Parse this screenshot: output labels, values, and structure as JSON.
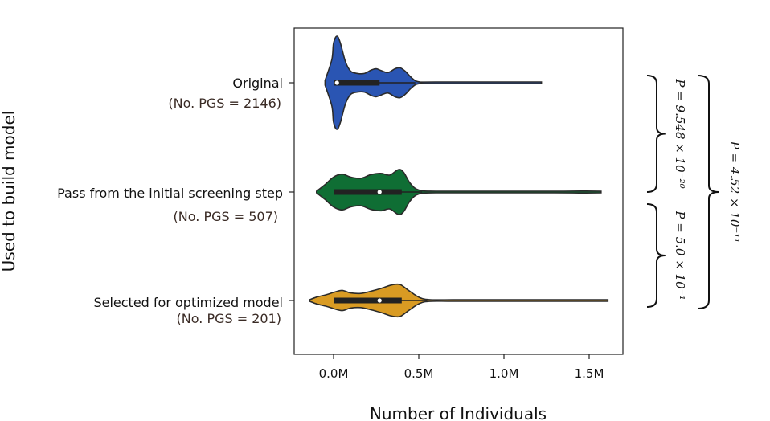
{
  "chart_data": {
    "type": "violin",
    "orientation": "horizontal",
    "xlabel": "Number of Individuals",
    "ylabel": "Used to build model",
    "xlim": [
      -0.22,
      1.7
    ],
    "x_unit": "M",
    "xticks": [
      {
        "value": 0.0,
        "label": "0.0M"
      },
      {
        "value": 0.5,
        "label": "0.5M"
      },
      {
        "value": 1.0,
        "label": "1.0M"
      },
      {
        "value": 1.5,
        "label": "1.5M"
      }
    ],
    "grid": false,
    "groups": [
      {
        "label": "Original",
        "sublabel": "(No. PGS = 2146)",
        "color": "#2a55b3",
        "median": 0.02,
        "q1": 0.0,
        "q3": 0.27,
        "whisker_high": 0.48,
        "min": -0.05,
        "max": 1.22,
        "density": [
          [
            -0.05,
            0.05
          ],
          [
            -0.01,
            0.5
          ],
          [
            0.0,
            0.85
          ],
          [
            0.02,
            1.0
          ],
          [
            0.04,
            0.85
          ],
          [
            0.07,
            0.45
          ],
          [
            0.1,
            0.25
          ],
          [
            0.14,
            0.2
          ],
          [
            0.18,
            0.2
          ],
          [
            0.22,
            0.27
          ],
          [
            0.25,
            0.3
          ],
          [
            0.28,
            0.26
          ],
          [
            0.32,
            0.22
          ],
          [
            0.36,
            0.3
          ],
          [
            0.39,
            0.32
          ],
          [
            0.42,
            0.25
          ],
          [
            0.46,
            0.1
          ],
          [
            0.5,
            0.02
          ],
          [
            0.6,
            0.01
          ],
          [
            1.22,
            0.005
          ]
        ]
      },
      {
        "label": "Pass from the initial screening step",
        "sublabel": "(No. PGS = 507)",
        "color": "#0f6e34",
        "median": 0.27,
        "q1": 0.0,
        "q3": 0.4,
        "whisker_high": 0.52,
        "min": -0.1,
        "max": 1.57,
        "density": [
          [
            -0.1,
            0.02
          ],
          [
            -0.05,
            0.3
          ],
          [
            0.0,
            0.6
          ],
          [
            0.05,
            0.72
          ],
          [
            0.1,
            0.6
          ],
          [
            0.16,
            0.55
          ],
          [
            0.22,
            0.7
          ],
          [
            0.28,
            0.75
          ],
          [
            0.33,
            0.68
          ],
          [
            0.38,
            0.9
          ],
          [
            0.41,
            0.8
          ],
          [
            0.45,
            0.35
          ],
          [
            0.5,
            0.08
          ],
          [
            0.6,
            0.03
          ],
          [
            0.9,
            0.02
          ],
          [
            1.3,
            0.02
          ],
          [
            1.45,
            0.04
          ],
          [
            1.57,
            0.01
          ]
        ]
      },
      {
        "label": "Selected for optimized model",
        "sublabel": "(No. PGS = 201)",
        "color": "#d99b23",
        "median": 0.27,
        "q1": 0.0,
        "q3": 0.4,
        "whisker_high": 0.55,
        "min": -0.14,
        "max": 1.61,
        "density": [
          [
            -0.14,
            0.02
          ],
          [
            -0.1,
            0.2
          ],
          [
            -0.04,
            0.35
          ],
          [
            0.0,
            0.48
          ],
          [
            0.05,
            0.6
          ],
          [
            0.1,
            0.45
          ],
          [
            0.16,
            0.42
          ],
          [
            0.22,
            0.55
          ],
          [
            0.28,
            0.72
          ],
          [
            0.34,
            0.92
          ],
          [
            0.39,
            0.95
          ],
          [
            0.44,
            0.6
          ],
          [
            0.5,
            0.2
          ],
          [
            0.56,
            0.05
          ],
          [
            0.7,
            0.03
          ],
          [
            1.0,
            0.02
          ],
          [
            1.4,
            0.03
          ],
          [
            1.61,
            0.01
          ]
        ]
      }
    ],
    "annotations": [
      {
        "text": "P = 9.548 × 10⁻²⁰",
        "between": [
          0,
          1
        ]
      },
      {
        "text": "P = 5.0 × 10⁻¹",
        "between": [
          1,
          2
        ]
      },
      {
        "text": "P = 4.52 × 10⁻¹¹",
        "between": [
          0,
          2
        ]
      }
    ]
  }
}
